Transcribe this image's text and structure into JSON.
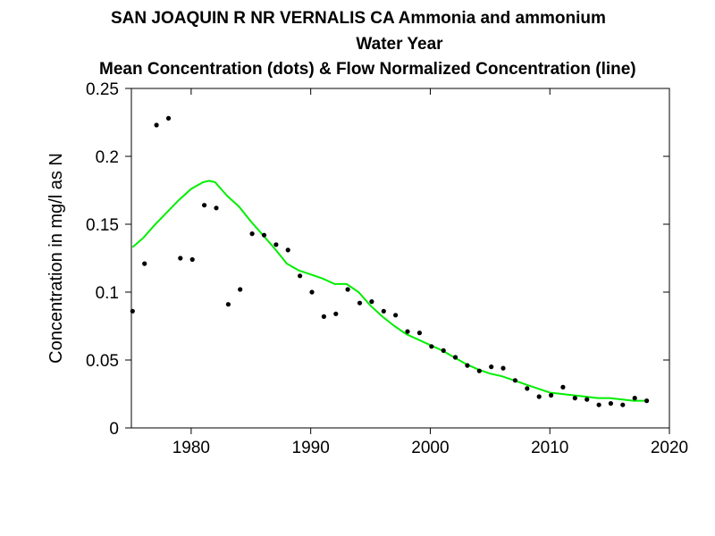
{
  "chart_data": {
    "type": "scatter",
    "title": "SAN JOAQUIN R NR VERNALIS CA   Ammonia and ammonium",
    "subtitle": "Water Year",
    "subtitle2": "Mean Concentration (dots) & Flow Normalized Concentration (line)",
    "xlabel": "",
    "ylabel": "Concentration in mg/l as N",
    "xlim": [
      1975,
      2020
    ],
    "ylim": [
      0,
      0.25
    ],
    "x_ticks": [
      1980,
      1990,
      2000,
      2010,
      2020
    ],
    "x_tick_labels": [
      "1980",
      "1990",
      "2000",
      "2010",
      "2020"
    ],
    "y_ticks": [
      0,
      0.05,
      0.1,
      0.15,
      0.2,
      0.25
    ],
    "y_tick_labels": [
      "0",
      "0.05",
      "0.1",
      "0.15",
      "0.2",
      "0.25"
    ],
    "grid": false,
    "series": [
      {
        "kind": "points",
        "color": "#000000",
        "x": [
          1975.1,
          1976.1,
          1977.1,
          1978.1,
          1979.1,
          1980.1,
          1981.1,
          1982.1,
          1983.1,
          1984.1,
          1985.1,
          1986.1,
          1987.1,
          1988.1,
          1989.1,
          1990.1,
          1991.1,
          1992.1,
          1993.1,
          1994.1,
          1995.1,
          1996.1,
          1997.1,
          1998.1,
          1999.1,
          2000.1,
          2001.1,
          2002.1,
          2003.1,
          2004.1,
          2005.1,
          2006.1,
          2007.1,
          2008.1,
          2009.1,
          2010.1,
          2011.1,
          2012.1,
          2013.1,
          2014.1,
          2015.1,
          2016.1,
          2017.1,
          2018.1
        ],
        "y": [
          0.086,
          0.121,
          0.223,
          0.228,
          0.125,
          0.124,
          0.164,
          0.162,
          0.091,
          0.102,
          0.143,
          0.142,
          0.135,
          0.131,
          0.112,
          0.1,
          0.082,
          0.084,
          0.102,
          0.092,
          0.093,
          0.086,
          0.083,
          0.071,
          0.07,
          0.06,
          0.057,
          0.052,
          0.046,
          0.042,
          0.045,
          0.044,
          0.035,
          0.029,
          0.023,
          0.024,
          0.03,
          0.022,
          0.021,
          0.017,
          0.018,
          0.017,
          0.022,
          0.02
        ]
      },
      {
        "kind": "line",
        "color": "#00ee00",
        "x": [
          1975.1,
          1976,
          1977,
          1978,
          1979,
          1980,
          1981,
          1981.5,
          1982,
          1983,
          1984,
          1985,
          1986,
          1987,
          1988,
          1989,
          1990,
          1991,
          1992,
          1993,
          1994,
          1995,
          1996,
          1997,
          1998,
          1999,
          2000,
          2001,
          2002,
          2003,
          2004,
          2005,
          2006,
          2007,
          2008,
          2009,
          2010,
          2011,
          2012,
          2013,
          2014,
          2015,
          2016,
          2017,
          2018.1
        ],
        "y": [
          0.133,
          0.14,
          0.15,
          0.159,
          0.168,
          0.176,
          0.181,
          0.182,
          0.181,
          0.171,
          0.163,
          0.152,
          0.142,
          0.132,
          0.121,
          0.116,
          0.113,
          0.11,
          0.106,
          0.106,
          0.1,
          0.09,
          0.082,
          0.075,
          0.069,
          0.065,
          0.061,
          0.057,
          0.052,
          0.047,
          0.043,
          0.04,
          0.038,
          0.035,
          0.032,
          0.029,
          0.026,
          0.025,
          0.024,
          0.023,
          0.022,
          0.022,
          0.021,
          0.02,
          0.02
        ]
      }
    ]
  }
}
